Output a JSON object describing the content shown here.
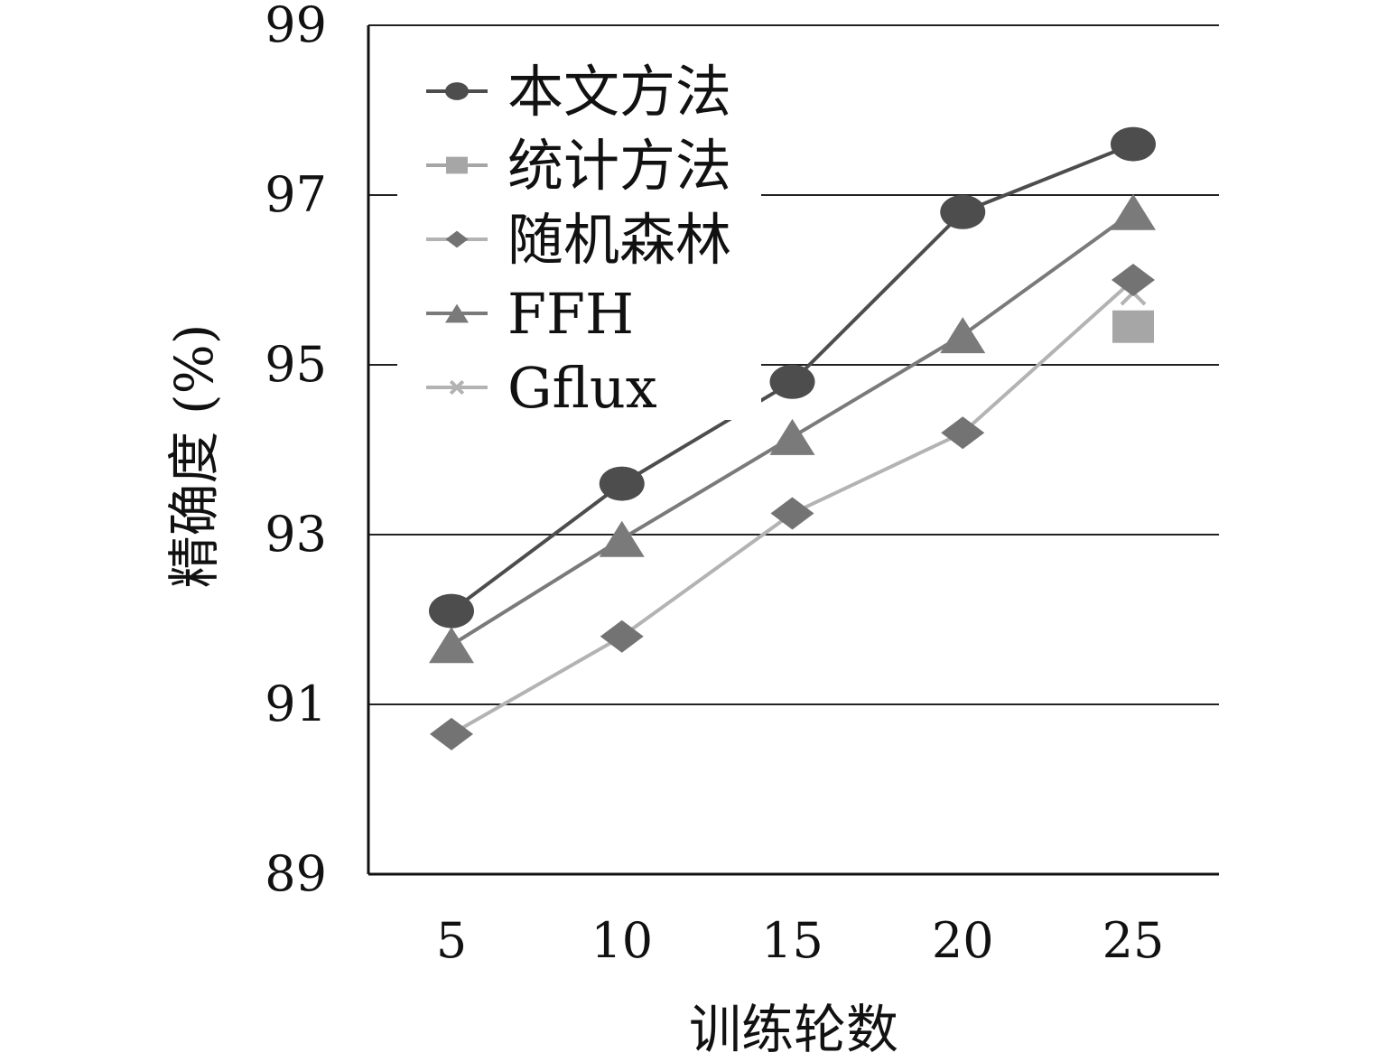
{
  "chart_data": {
    "type": "line",
    "title": "",
    "xlabel": "训练轮数",
    "ylabel": "精确度 (%)",
    "x": [
      5,
      10,
      15,
      20,
      25
    ],
    "xticks": [
      "5",
      "10",
      "15",
      "20",
      "25"
    ],
    "ylim": [
      89,
      99
    ],
    "yticks": [
      89,
      91,
      93,
      95,
      97,
      99
    ],
    "grid": "horizontal",
    "legend": "top-left",
    "series": [
      {
        "name": "本文方法",
        "marker": "circle",
        "color": "#4d4d4d",
        "values": [
          92.1,
          93.6,
          94.8,
          96.8,
          97.6
        ]
      },
      {
        "name": "统计方法",
        "marker": "square",
        "color": "#a6a6a6",
        "values": [
          null,
          null,
          null,
          null,
          95.45
        ]
      },
      {
        "name": "随机森林",
        "marker": "diamond",
        "color": "#737373",
        "line_color": "#b3b3b3",
        "values": [
          90.65,
          91.8,
          93.25,
          94.2,
          96.0
        ]
      },
      {
        "name": "FFH",
        "marker": "triangle",
        "color": "#7a7a7a",
        "values": [
          91.7,
          92.95,
          94.15,
          95.35,
          96.8
        ]
      },
      {
        "name": "Gflux",
        "marker": "cross",
        "color": "#b3b3b3",
        "values": [
          null,
          null,
          null,
          null,
          95.85
        ]
      }
    ]
  }
}
